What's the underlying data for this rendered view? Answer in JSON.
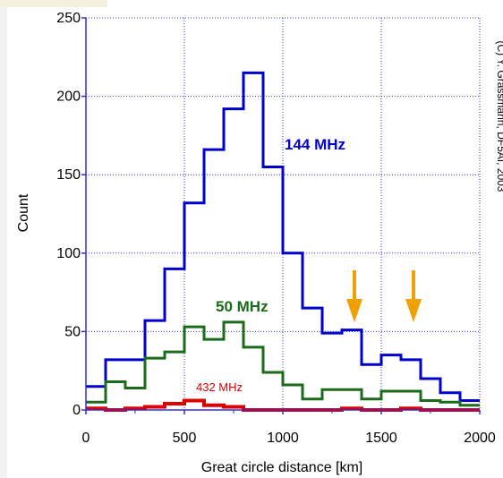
{
  "chart_data": {
    "type": "line",
    "step": true,
    "xlabel": "Great circle distance [km]",
    "ylabel": "Count",
    "xlim": [
      0,
      2000
    ],
    "ylim": [
      0,
      250
    ],
    "xticks": [
      0,
      500,
      1000,
      1500,
      2000
    ],
    "yticks": [
      0,
      50,
      100,
      150,
      200,
      250
    ],
    "grid": true,
    "bin_edges": [
      0,
      100,
      200,
      300,
      400,
      500,
      600,
      700,
      800,
      900,
      1000,
      1100,
      1200,
      1300,
      1400,
      1500,
      1600,
      1700,
      1800,
      1900,
      2000
    ],
    "series": [
      {
        "name": "144 MHz",
        "color": "#0000cc",
        "values": [
          15,
          32,
          32,
          57,
          90,
          132,
          166,
          192,
          215,
          155,
          100,
          65,
          49,
          51,
          29,
          35,
          32,
          20,
          11,
          6
        ]
      },
      {
        "name": "50 MHz",
        "color": "#1a6b1a",
        "values": [
          5,
          18,
          14,
          33,
          37,
          53,
          45,
          56,
          40,
          24,
          16,
          7,
          13,
          13,
          7,
          12,
          12,
          6,
          5,
          3
        ]
      },
      {
        "name": "432 MHz",
        "color": "#dd0000",
        "values": [
          1,
          0,
          1,
          2,
          4,
          6,
          3,
          2,
          0,
          0,
          0,
          0,
          0,
          1,
          0,
          0,
          1,
          0,
          0,
          0
        ]
      }
    ],
    "annotations": {
      "arrows_x": [
        1350,
        1650
      ],
      "arrow_color": "#f0a000",
      "copyright": "(C) Y. Grassmann, DF5AI, 2003"
    }
  }
}
